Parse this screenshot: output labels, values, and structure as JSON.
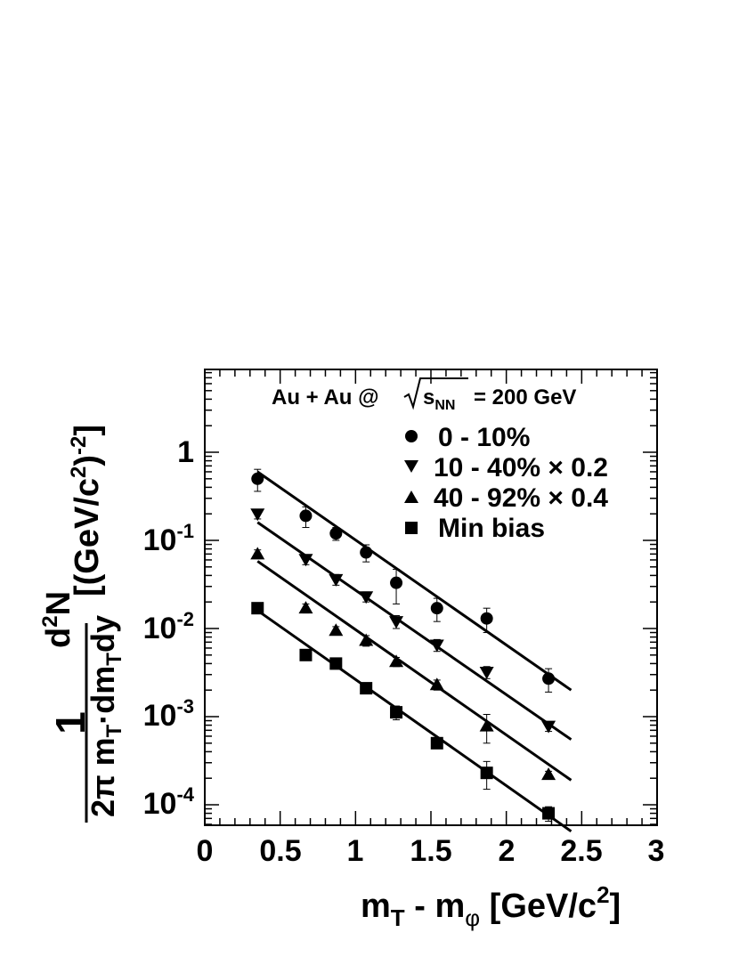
{
  "chart_data": {
    "type": "scatter",
    "x_scale": "linear",
    "y_scale": "log",
    "xlim": [
      0,
      3
    ],
    "ylim": [
      5e-05,
      8
    ],
    "x_ticks": [
      "0",
      "0.5",
      "1",
      "1.5",
      "2",
      "2.5",
      "3"
    ],
    "y_ticks": [
      {
        "base": "1",
        "exp": ""
      },
      {
        "base": "10",
        "exp": "-1"
      },
      {
        "base": "10",
        "exp": "-2"
      },
      {
        "base": "10",
        "exp": "-3"
      },
      {
        "base": "10",
        "exp": "-4"
      }
    ],
    "annotation": {
      "prefix": "Au + Au @",
      "sqrt_s": "s",
      "sqrt_sub": "NN",
      "suffix": "= 200 GeV"
    },
    "xlabel": {
      "m": "m",
      "sub_t": "T",
      "minus": " - m",
      "sub_phi": "φ",
      "unit": " [GeV/c",
      "sup": "2",
      "close": "]"
    },
    "ylabel": {
      "one": "1",
      "two_pi_mt": "2π m",
      "sub_t1": "T",
      "dot": "·",
      "dmt": "dm",
      "sub_t2": "T",
      "dy": "dy",
      "d2n_d": "d",
      "d2n_sup": "2",
      "d2n_n": "N",
      "unit_open": "[(GeV/c",
      "unit_sup1": "2",
      "unit_mid": ")",
      "unit_sup2": "-2",
      "unit_close": "]"
    },
    "series": [
      {
        "name": "0 - 10%",
        "marker": "circle",
        "x": [
          0.35,
          0.67,
          0.87,
          1.07,
          1.27,
          1.54,
          1.87,
          2.28
        ],
        "y": [
          0.5,
          0.19,
          0.12,
          0.073,
          0.033,
          0.017,
          0.013,
          0.0027
        ],
        "y_err": [
          0.14,
          0.05,
          0.02,
          0.016,
          0.014,
          0.005,
          0.004,
          0.0008
        ],
        "fit": {
          "x": [
            0.35,
            2.43
          ],
          "y": [
            0.6,
            0.002
          ]
        }
      },
      {
        "name": "10 - 40% × 0.2",
        "marker": "triangle-down",
        "x": [
          0.35,
          0.67,
          0.87,
          1.07,
          1.27,
          1.54,
          1.87,
          2.28
        ],
        "y": [
          0.2,
          0.061,
          0.036,
          0.023,
          0.012,
          0.0065,
          0.0032,
          0.00078
        ],
        "y_err": [
          0.025,
          0.008,
          0.005,
          0.003,
          0.002,
          0.001,
          0.0005,
          0.0001
        ],
        "fit": {
          "x": [
            0.35,
            2.43
          ],
          "y": [
            0.16,
            0.00055
          ]
        }
      },
      {
        "name": "40 - 92% × 0.4",
        "marker": "triangle-up",
        "x": [
          0.35,
          0.67,
          0.87,
          1.07,
          1.27,
          1.54,
          1.87,
          2.28
        ],
        "y": [
          0.07,
          0.017,
          0.0095,
          0.0073,
          0.0042,
          0.0023,
          0.00078,
          0.00022
        ],
        "y_err": [
          0.008,
          0.002,
          0.001,
          0.001,
          0.0005,
          0.0003,
          0.00028,
          2e-05
        ],
        "fit": {
          "x": [
            0.35,
            2.43
          ],
          "y": [
            0.058,
            0.00019
          ]
        }
      },
      {
        "name": "Min bias",
        "marker": "square",
        "x": [
          0.35,
          0.67,
          0.87,
          1.07,
          1.27,
          1.54,
          1.87,
          2.28
        ],
        "y": [
          0.017,
          0.005,
          0.004,
          0.0021,
          0.00112,
          0.0005,
          0.00023,
          8e-05
        ],
        "y_err": [
          0.0015,
          0.0005,
          0.0003,
          0.0002,
          0.0002,
          4e-05,
          8e-05,
          1.5e-05
        ],
        "fit": {
          "x": [
            0.35,
            2.43
          ],
          "y": [
            0.016,
            5e-05
          ]
        }
      }
    ],
    "legend_position": "top-right",
    "grid": false
  }
}
